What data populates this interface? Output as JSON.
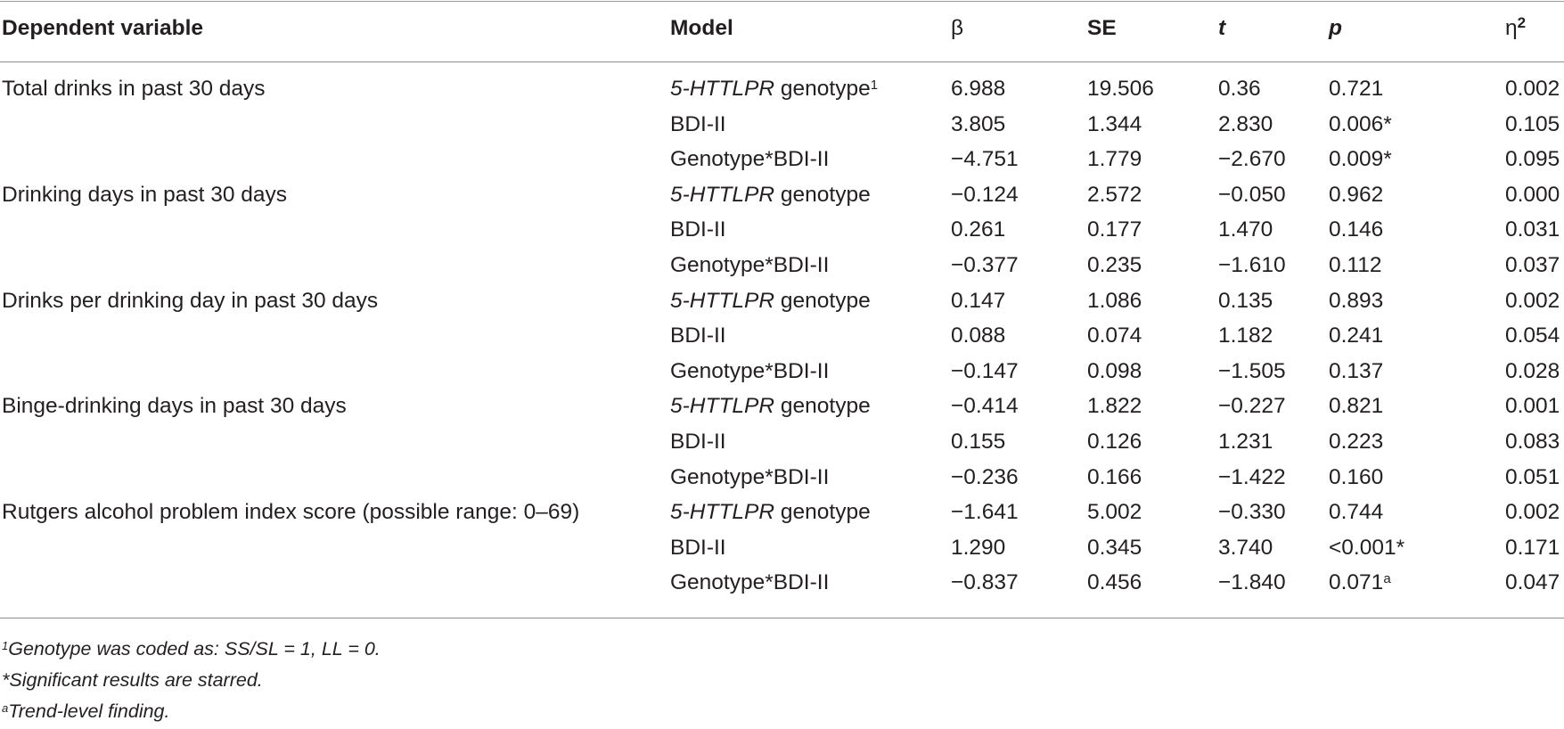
{
  "header": {
    "dependent_variable": "Dependent variable",
    "model": "Model",
    "beta": "β",
    "se": "SE",
    "t": "t",
    "p": "p",
    "eta": "η",
    "eta_sup": "2"
  },
  "rows": [
    {
      "dv": "Total drinks in past 30 days",
      "model_italic": "5-HTTLPR",
      "model_rest": " genotype",
      "model_sup": "1",
      "beta": "6.988",
      "se": "19.506",
      "t": "0.36",
      "p": "0.721",
      "p_sup": "",
      "eta2": "0.002"
    },
    {
      "dv": "",
      "model_italic": "",
      "model_rest": "BDI-II",
      "model_sup": "",
      "beta": "3.805",
      "se": "1.344",
      "t": "2.830",
      "p": "0.006*",
      "p_sup": "",
      "eta2": "0.105"
    },
    {
      "dv": "",
      "model_italic": "",
      "model_rest": "Genotype*BDI-II",
      "model_sup": "",
      "beta": "−4.751",
      "se": "1.779",
      "t": "−2.670",
      "p": "0.009*",
      "p_sup": "",
      "eta2": "0.095"
    },
    {
      "dv": "Drinking days in past 30 days",
      "model_italic": "5-HTTLPR",
      "model_rest": " genotype",
      "model_sup": "",
      "beta": "−0.124",
      "se": "2.572",
      "t": "−0.050",
      "p": "0.962",
      "p_sup": "",
      "eta2": "0.000"
    },
    {
      "dv": "",
      "model_italic": "",
      "model_rest": "BDI-II",
      "model_sup": "",
      "beta": "0.261",
      "se": "0.177",
      "t": "1.470",
      "p": "0.146",
      "p_sup": "",
      "eta2": "0.031"
    },
    {
      "dv": "",
      "model_italic": "",
      "model_rest": "Genotype*BDI-II",
      "model_sup": "",
      "beta": "−0.377",
      "se": "0.235",
      "t": "−1.610",
      "p": "0.112",
      "p_sup": "",
      "eta2": "0.037"
    },
    {
      "dv": "Drinks per drinking day in past 30 days",
      "model_italic": "5-HTTLPR",
      "model_rest": " genotype",
      "model_sup": "",
      "beta": "0.147",
      "se": "1.086",
      "t": "0.135",
      "p": "0.893",
      "p_sup": "",
      "eta2": "0.002"
    },
    {
      "dv": "",
      "model_italic": "",
      "model_rest": "BDI-II",
      "model_sup": "",
      "beta": "0.088",
      "se": "0.074",
      "t": "1.182",
      "p": "0.241",
      "p_sup": "",
      "eta2": "0.054"
    },
    {
      "dv": "",
      "model_italic": "",
      "model_rest": "Genotype*BDI-II",
      "model_sup": "",
      "beta": "−0.147",
      "se": "0.098",
      "t": "−1.505",
      "p": "0.137",
      "p_sup": "",
      "eta2": "0.028"
    },
    {
      "dv": "Binge-drinking days in past 30 days",
      "model_italic": "5-HTTLPR",
      "model_rest": " genotype",
      "model_sup": "",
      "beta": "−0.414",
      "se": "1.822",
      "t": "−0.227",
      "p": "0.821",
      "p_sup": "",
      "eta2": "0.001"
    },
    {
      "dv": "",
      "model_italic": "",
      "model_rest": "BDI-II",
      "model_sup": "",
      "beta": "0.155",
      "se": "0.126",
      "t": "1.231",
      "p": "0.223",
      "p_sup": "",
      "eta2": "0.083"
    },
    {
      "dv": "",
      "model_italic": "",
      "model_rest": "Genotype*BDI-II",
      "model_sup": "",
      "beta": "−0.236",
      "se": "0.166",
      "t": "−1.422",
      "p": "0.160",
      "p_sup": "",
      "eta2": "0.051"
    },
    {
      "dv": "Rutgers alcohol problem index score (possible range: 0–69)",
      "model_italic": "5-HTTLPR",
      "model_rest": " genotype",
      "model_sup": "",
      "beta": "−1.641",
      "se": "5.002",
      "t": "−0.330",
      "p": "0.744",
      "p_sup": "",
      "eta2": "0.002"
    },
    {
      "dv": "",
      "model_italic": "",
      "model_rest": "BDI-II",
      "model_sup": "",
      "beta": "1.290",
      "se": "0.345",
      "t": "3.740",
      "p": "<0.001*",
      "p_sup": "",
      "eta2": "0.171"
    },
    {
      "dv": "",
      "model_italic": "",
      "model_rest": "Genotype*BDI-II",
      "model_sup": "",
      "beta": "−0.837",
      "se": "0.456",
      "t": "−1.840",
      "p": "0.071",
      "p_sup": "a",
      "eta2": "0.047"
    }
  ],
  "footnotes": [
    {
      "mark": "1",
      "text": "Genotype was coded as: SS/SL = 1, LL = 0."
    },
    {
      "mark": "",
      "text": "*Significant results are starred."
    },
    {
      "mark": "a",
      "text": "Trend-level finding."
    }
  ]
}
